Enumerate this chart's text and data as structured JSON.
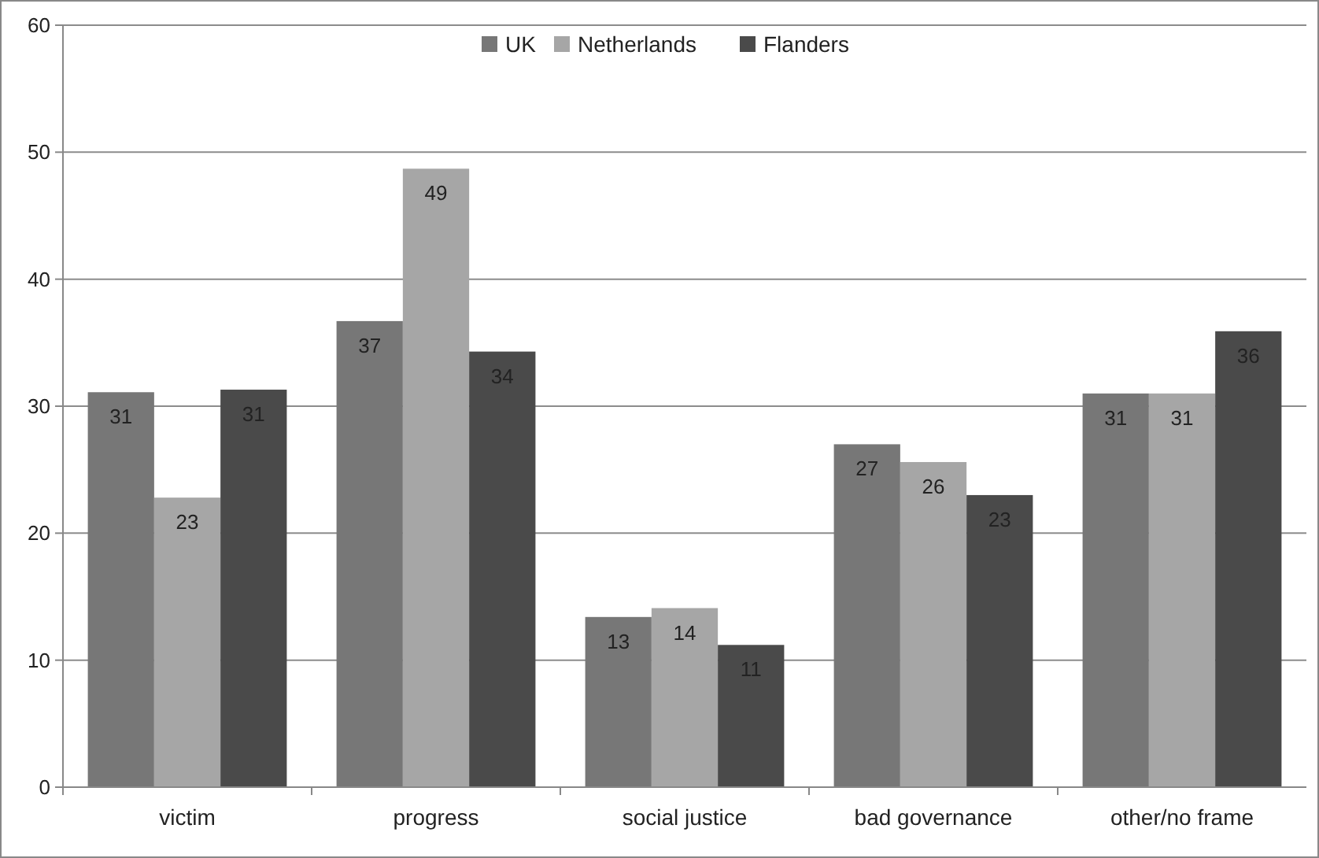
{
  "chart_data": {
    "type": "bar",
    "categories": [
      "victim",
      "progress",
      "social justice",
      "bad governance",
      "other/no frame"
    ],
    "series": [
      {
        "name": "UK",
        "color": "#777777",
        "values": [
          31.1,
          36.7,
          13.4,
          27,
          31
        ],
        "value_labels": [
          "31",
          "37",
          "13",
          "27",
          "31"
        ]
      },
      {
        "name": "Netherlands",
        "color": "#a6a6a6",
        "values": [
          22.8,
          48.7,
          14.1,
          25.6,
          31
        ],
        "value_labels": [
          "23",
          "49",
          "14",
          "26",
          "31"
        ]
      },
      {
        "name": "Flanders",
        "color": "#4a4a4a",
        "values": [
          31.3,
          34.3,
          11.2,
          23,
          35.9
        ],
        "value_labels": [
          "31",
          "34",
          "11",
          "23",
          "36"
        ]
      }
    ],
    "ylim": [
      0,
      60
    ],
    "yticks": [
      0,
      10,
      20,
      30,
      40,
      50,
      60
    ],
    "grid": "y",
    "legend": "top"
  }
}
